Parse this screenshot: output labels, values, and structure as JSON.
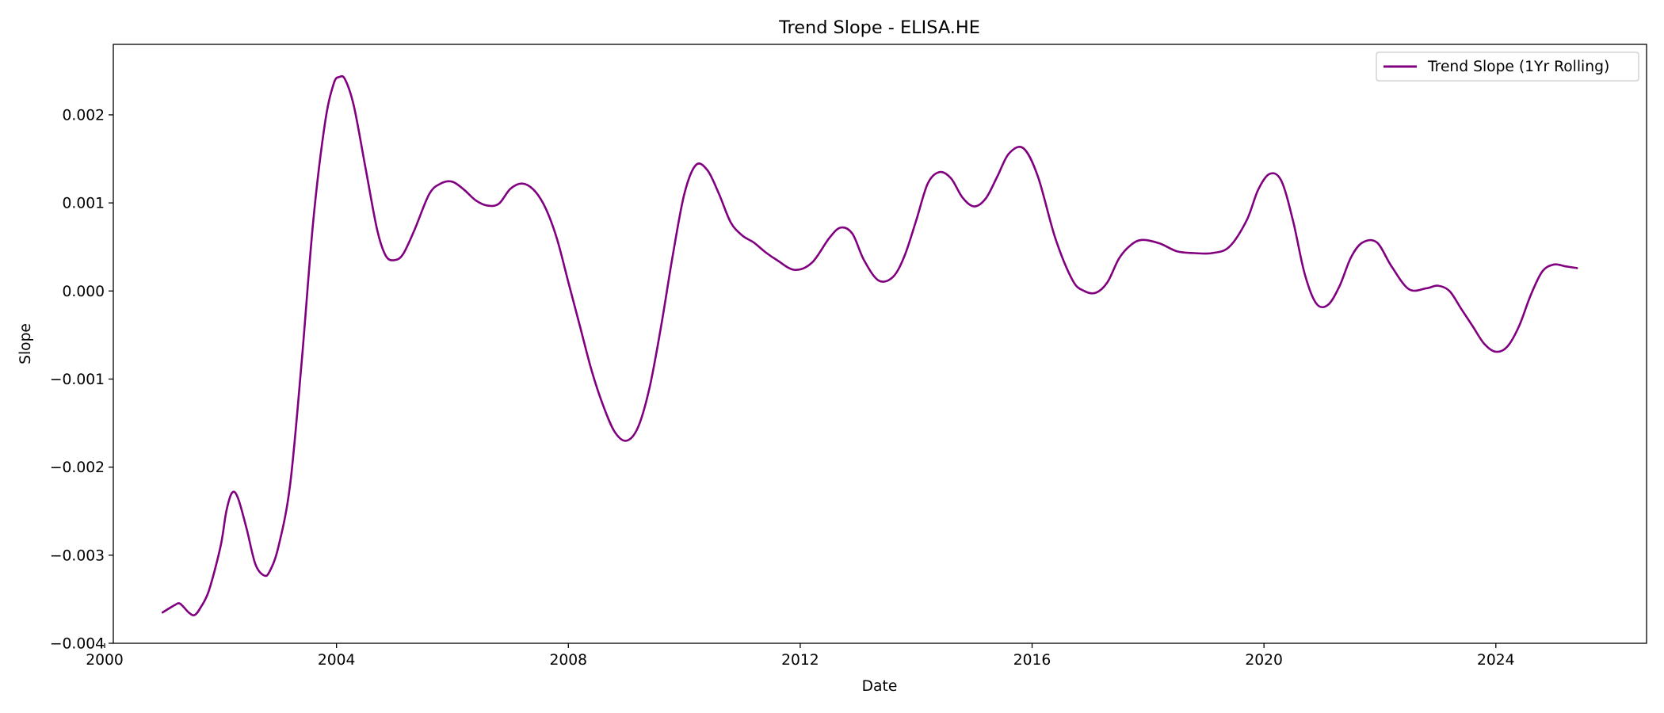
{
  "chart_data": {
    "type": "line",
    "title": "Trend Slope - ELISA.HE",
    "xlabel": "Date",
    "ylabel": "Slope",
    "xlim": [
      2000.15,
      2026.6
    ],
    "ylim": [
      -0.004,
      0.0028
    ],
    "x_ticks": [
      2000,
      2004,
      2008,
      2012,
      2016,
      2020,
      2024
    ],
    "x_tick_labels": [
      "2000",
      "2004",
      "2008",
      "2012",
      "2016",
      "2020",
      "2024"
    ],
    "y_ticks": [
      -0.004,
      -0.003,
      -0.002,
      -0.001,
      0.0,
      0.001,
      0.002
    ],
    "y_tick_labels": [
      "−0.004",
      "−0.003",
      "−0.002",
      "−0.001",
      "0.000",
      "0.001",
      "0.002"
    ],
    "grid": false,
    "legend_position": "top-right",
    "series": [
      {
        "name": "Trend Slope (1Yr Rolling)",
        "color": "#800080",
        "x": [
          2001.0,
          2001.2,
          2001.3,
          2001.45,
          2001.55,
          2001.65,
          2001.8,
          2002.0,
          2002.1,
          2002.2,
          2002.3,
          2002.45,
          2002.6,
          2002.75,
          2002.85,
          2003.0,
          2003.2,
          2003.4,
          2003.6,
          2003.8,
          2003.95,
          2004.05,
          2004.15,
          2004.3,
          2004.5,
          2004.7,
          2004.85,
          2005.0,
          2005.15,
          2005.35,
          2005.6,
          2005.8,
          2006.0,
          2006.2,
          2006.4,
          2006.6,
          2006.8,
          2007.0,
          2007.2,
          2007.4,
          2007.6,
          2007.8,
          2008.0,
          2008.2,
          2008.4,
          2008.6,
          2008.8,
          2009.0,
          2009.2,
          2009.4,
          2009.6,
          2009.8,
          2010.0,
          2010.2,
          2010.4,
          2010.6,
          2010.8,
          2011.0,
          2011.2,
          2011.4,
          2011.6,
          2011.9,
          2012.2,
          2012.5,
          2012.7,
          2012.9,
          2013.1,
          2013.35,
          2013.6,
          2013.8,
          2014.0,
          2014.2,
          2014.4,
          2014.6,
          2014.8,
          2015.0,
          2015.2,
          2015.4,
          2015.6,
          2015.85,
          2016.1,
          2016.4,
          2016.7,
          2016.9,
          2017.1,
          2017.3,
          2017.5,
          2017.7,
          2017.9,
          2018.2,
          2018.5,
          2018.8,
          2019.1,
          2019.4,
          2019.7,
          2019.9,
          2020.1,
          2020.3,
          2020.5,
          2020.7,
          2020.9,
          2021.1,
          2021.3,
          2021.5,
          2021.7,
          2021.95,
          2022.2,
          2022.5,
          2022.8,
          2023.0,
          2023.2,
          2023.4,
          2023.6,
          2023.8,
          2024.0,
          2024.2,
          2024.4,
          2024.6,
          2024.8,
          2025.0,
          2025.2,
          2025.4
        ],
        "y": [
          -0.00365,
          -0.00357,
          -0.00355,
          -0.00365,
          -0.00368,
          -0.0036,
          -0.0034,
          -0.0029,
          -0.0025,
          -0.00229,
          -0.00235,
          -0.0027,
          -0.0031,
          -0.00323,
          -0.00318,
          -0.0029,
          -0.0022,
          -0.0008,
          0.0008,
          0.0019,
          0.00235,
          0.00243,
          0.0024,
          0.0021,
          0.0014,
          0.0007,
          0.0004,
          0.00035,
          0.00042,
          0.0007,
          0.0011,
          0.00122,
          0.00124,
          0.00115,
          0.00103,
          0.00097,
          0.00099,
          0.00116,
          0.00122,
          0.00115,
          0.00095,
          0.0006,
          0.0001,
          -0.0004,
          -0.0009,
          -0.0013,
          -0.0016,
          -0.0017,
          -0.00155,
          -0.0011,
          -0.0004,
          0.0004,
          0.0011,
          0.00143,
          0.00137,
          0.0011,
          0.00078,
          0.00063,
          0.00055,
          0.00044,
          0.00035,
          0.00024,
          0.00032,
          0.0006,
          0.00072,
          0.00065,
          0.00035,
          0.00012,
          0.00016,
          0.0004,
          0.0008,
          0.00122,
          0.00135,
          0.00128,
          0.00106,
          0.00096,
          0.00105,
          0.0013,
          0.00156,
          0.00162,
          0.0013,
          0.0006,
          0.00012,
          -0.0,
          -2e-05,
          0.0001,
          0.00037,
          0.00052,
          0.00058,
          0.00054,
          0.00045,
          0.00043,
          0.00043,
          0.0005,
          0.0008,
          0.00115,
          0.00133,
          0.00125,
          0.0008,
          0.0002,
          -0.00014,
          -0.00016,
          5e-05,
          0.00038,
          0.00055,
          0.00055,
          0.00028,
          2e-05,
          3e-05,
          6e-05,
          0.0,
          -0.0002,
          -0.0004,
          -0.0006,
          -0.00069,
          -0.00063,
          -0.0004,
          -5e-05,
          0.00022,
          0.0003,
          0.00028,
          0.00026
        ]
      }
    ]
  }
}
